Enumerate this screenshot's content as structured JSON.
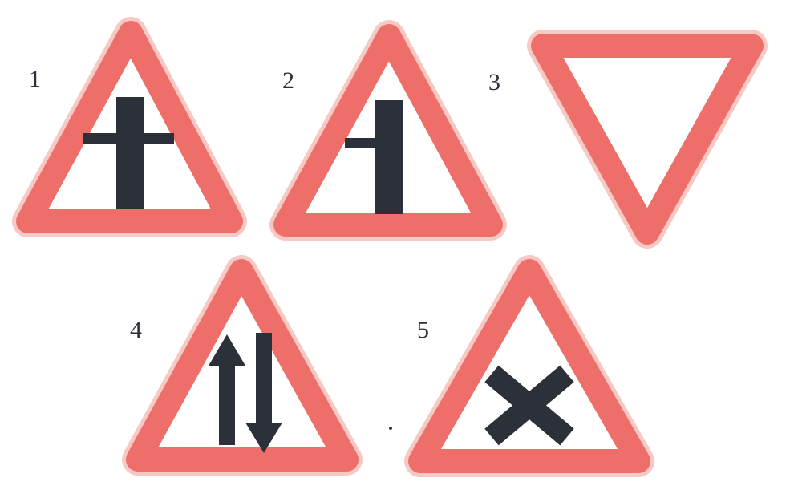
{
  "signs": [
    {
      "number": "1",
      "symbol": "crossroad-secondary-road-icon"
    },
    {
      "number": "2",
      "symbol": "side-road-left-icon"
    },
    {
      "number": "3",
      "symbol": "give-way-icon"
    },
    {
      "number": "4",
      "symbol": "two-way-traffic-icon"
    },
    {
      "number": "5",
      "symbol": "crossroads-icon"
    }
  ],
  "colors": {
    "border_red": "#ee6f6a",
    "border_halo": "#f7c9c5",
    "symbol_dark": "#2b3039",
    "background": "#ffffff"
  }
}
